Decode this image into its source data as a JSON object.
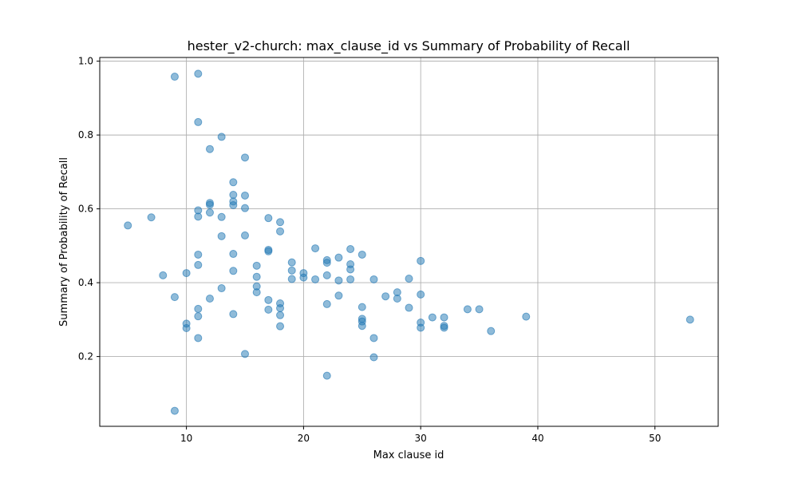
{
  "chart_data": {
    "type": "scatter",
    "title": "hester_v2-church: max_clause_id vs Summary of Probability of Recall",
    "xlabel": "Max clause id",
    "ylabel": "Summary of Probability of Recall",
    "xlim": [
      2.6,
      55.4
    ],
    "ylim": [
      0.011,
      1.01
    ],
    "xticks": [
      10,
      20,
      30,
      40,
      50
    ],
    "yticks": [
      0.2,
      0.4,
      0.6,
      0.8,
      1.0
    ],
    "xtick_labels": [
      "10",
      "20",
      "30",
      "40",
      "50"
    ],
    "ytick_labels": [
      "0.2",
      "0.4",
      "0.6",
      "0.8",
      "1.0"
    ],
    "grid": true,
    "color": "#1f77b4",
    "points": [
      [
        5,
        0.555
      ],
      [
        7,
        0.577
      ],
      [
        8,
        0.42
      ],
      [
        9,
        0.958
      ],
      [
        9,
        0.361
      ],
      [
        9,
        0.053
      ],
      [
        10,
        0.426
      ],
      [
        10,
        0.289
      ],
      [
        10,
        0.277
      ],
      [
        11,
        0.966
      ],
      [
        11,
        0.835
      ],
      [
        11,
        0.596
      ],
      [
        11,
        0.579
      ],
      [
        11,
        0.476
      ],
      [
        11,
        0.448
      ],
      [
        11,
        0.329
      ],
      [
        11,
        0.309
      ],
      [
        11,
        0.25
      ],
      [
        12,
        0.762
      ],
      [
        12,
        0.616
      ],
      [
        12,
        0.611
      ],
      [
        12,
        0.59
      ],
      [
        12,
        0.357
      ],
      [
        13,
        0.795
      ],
      [
        13,
        0.578
      ],
      [
        13,
        0.526
      ],
      [
        13,
        0.385
      ],
      [
        14,
        0.672
      ],
      [
        14,
        0.638
      ],
      [
        14,
        0.62
      ],
      [
        14,
        0.61
      ],
      [
        14,
        0.478
      ],
      [
        14,
        0.432
      ],
      [
        14,
        0.315
      ],
      [
        15,
        0.739
      ],
      [
        15,
        0.636
      ],
      [
        15,
        0.602
      ],
      [
        15,
        0.528
      ],
      [
        15,
        0.207
      ],
      [
        16,
        0.446
      ],
      [
        16,
        0.416
      ],
      [
        16,
        0.39
      ],
      [
        16,
        0.374
      ],
      [
        17,
        0.575
      ],
      [
        17,
        0.489
      ],
      [
        17,
        0.485
      ],
      [
        17,
        0.353
      ],
      [
        17,
        0.327
      ],
      [
        18,
        0.564
      ],
      [
        18,
        0.539
      ],
      [
        18,
        0.344
      ],
      [
        18,
        0.331
      ],
      [
        18,
        0.312
      ],
      [
        18,
        0.282
      ],
      [
        19,
        0.455
      ],
      [
        19,
        0.433
      ],
      [
        19,
        0.41
      ],
      [
        20,
        0.426
      ],
      [
        20,
        0.414
      ],
      [
        21,
        0.493
      ],
      [
        21,
        0.409
      ],
      [
        22,
        0.461
      ],
      [
        22,
        0.454
      ],
      [
        22,
        0.42
      ],
      [
        22,
        0.342
      ],
      [
        22,
        0.148
      ],
      [
        23,
        0.468
      ],
      [
        23,
        0.406
      ],
      [
        23,
        0.365
      ],
      [
        24,
        0.491
      ],
      [
        24,
        0.45
      ],
      [
        24,
        0.436
      ],
      [
        24,
        0.409
      ],
      [
        25,
        0.476
      ],
      [
        25,
        0.334
      ],
      [
        25,
        0.302
      ],
      [
        25,
        0.295
      ],
      [
        25,
        0.283
      ],
      [
        26,
        0.409
      ],
      [
        26,
        0.25
      ],
      [
        26,
        0.198
      ],
      [
        27,
        0.363
      ],
      [
        28,
        0.374
      ],
      [
        28,
        0.357
      ],
      [
        29,
        0.411
      ],
      [
        29,
        0.332
      ],
      [
        30,
        0.459
      ],
      [
        30,
        0.368
      ],
      [
        30,
        0.292
      ],
      [
        30,
        0.278
      ],
      [
        31,
        0.306
      ],
      [
        32,
        0.306
      ],
      [
        32,
        0.283
      ],
      [
        32,
        0.278
      ],
      [
        34,
        0.328
      ],
      [
        35,
        0.328
      ],
      [
        36,
        0.269
      ],
      [
        39,
        0.308
      ],
      [
        53,
        0.3
      ]
    ]
  }
}
